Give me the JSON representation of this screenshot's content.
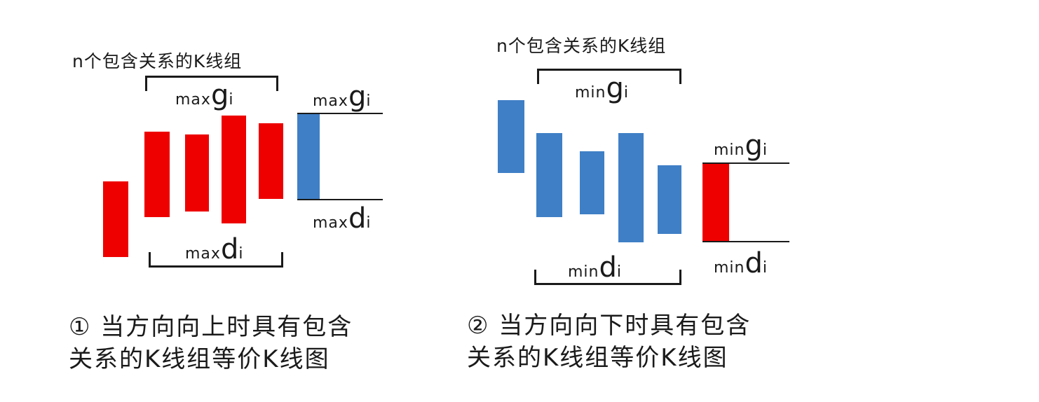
{
  "colors": {
    "up": "#ee0000",
    "down": "#3f7fc6",
    "ink": "#1a1a1a"
  },
  "left": {
    "title": "n个包含关系的K线组",
    "top_label": {
      "prefix": "max",
      "big": "g",
      "sub": "i"
    },
    "bottom_label": {
      "prefix": "max",
      "big": "d",
      "sub": "i"
    },
    "right_top_label": {
      "prefix": "max",
      "big": "g",
      "sub": "i"
    },
    "right_bottom_label": {
      "prefix": "max",
      "big": "d",
      "sub": "i"
    },
    "caption_line1": "① 当方向向上时具有包含",
    "caption_line2": "关系的K线组等价K线图"
  },
  "right": {
    "title": "n个包含关系的K线组",
    "top_label": {
      "prefix": "min",
      "big": "g",
      "sub": "i"
    },
    "bottom_label": {
      "prefix": "min",
      "big": "d",
      "sub": "i"
    },
    "right_top_label": {
      "prefix": "min",
      "big": "g",
      "sub": "i"
    },
    "right_bottom_label": {
      "prefix": "min",
      "big": "d",
      "sub": "i"
    },
    "caption_line1": "② 当方向向下时具有包含",
    "caption_line2": "关系的K线组等价K线图"
  }
}
